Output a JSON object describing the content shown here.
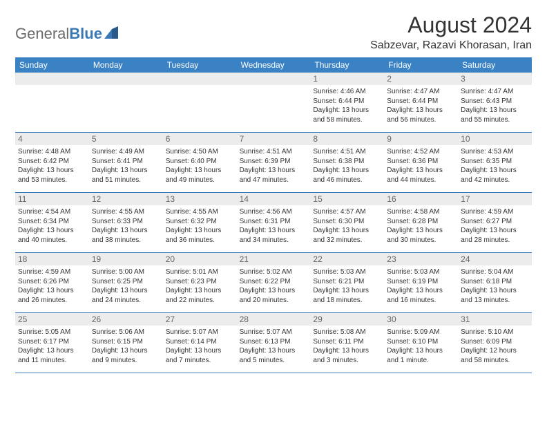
{
  "logo": {
    "part1": "General",
    "part2": "Blue"
  },
  "title": "August 2024",
  "location": "Sabzevar, Razavi Khorasan, Iran",
  "colors": {
    "header_bg": "#3a82c4",
    "header_text": "#ffffff",
    "daynum_bg": "#ececec",
    "daynum_text": "#666666",
    "body_text": "#333333",
    "border": "#3a78b5"
  },
  "weekdays": [
    "Sunday",
    "Monday",
    "Tuesday",
    "Wednesday",
    "Thursday",
    "Friday",
    "Saturday"
  ],
  "weeks": [
    [
      {
        "n": "",
        "sr": "",
        "ss": "",
        "dl": ""
      },
      {
        "n": "",
        "sr": "",
        "ss": "",
        "dl": ""
      },
      {
        "n": "",
        "sr": "",
        "ss": "",
        "dl": ""
      },
      {
        "n": "",
        "sr": "",
        "ss": "",
        "dl": ""
      },
      {
        "n": "1",
        "sr": "Sunrise: 4:46 AM",
        "ss": "Sunset: 6:44 PM",
        "dl": "Daylight: 13 hours and 58 minutes."
      },
      {
        "n": "2",
        "sr": "Sunrise: 4:47 AM",
        "ss": "Sunset: 6:44 PM",
        "dl": "Daylight: 13 hours and 56 minutes."
      },
      {
        "n": "3",
        "sr": "Sunrise: 4:47 AM",
        "ss": "Sunset: 6:43 PM",
        "dl": "Daylight: 13 hours and 55 minutes."
      }
    ],
    [
      {
        "n": "4",
        "sr": "Sunrise: 4:48 AM",
        "ss": "Sunset: 6:42 PM",
        "dl": "Daylight: 13 hours and 53 minutes."
      },
      {
        "n": "5",
        "sr": "Sunrise: 4:49 AM",
        "ss": "Sunset: 6:41 PM",
        "dl": "Daylight: 13 hours and 51 minutes."
      },
      {
        "n": "6",
        "sr": "Sunrise: 4:50 AM",
        "ss": "Sunset: 6:40 PM",
        "dl": "Daylight: 13 hours and 49 minutes."
      },
      {
        "n": "7",
        "sr": "Sunrise: 4:51 AM",
        "ss": "Sunset: 6:39 PM",
        "dl": "Daylight: 13 hours and 47 minutes."
      },
      {
        "n": "8",
        "sr": "Sunrise: 4:51 AM",
        "ss": "Sunset: 6:38 PM",
        "dl": "Daylight: 13 hours and 46 minutes."
      },
      {
        "n": "9",
        "sr": "Sunrise: 4:52 AM",
        "ss": "Sunset: 6:36 PM",
        "dl": "Daylight: 13 hours and 44 minutes."
      },
      {
        "n": "10",
        "sr": "Sunrise: 4:53 AM",
        "ss": "Sunset: 6:35 PM",
        "dl": "Daylight: 13 hours and 42 minutes."
      }
    ],
    [
      {
        "n": "11",
        "sr": "Sunrise: 4:54 AM",
        "ss": "Sunset: 6:34 PM",
        "dl": "Daylight: 13 hours and 40 minutes."
      },
      {
        "n": "12",
        "sr": "Sunrise: 4:55 AM",
        "ss": "Sunset: 6:33 PM",
        "dl": "Daylight: 13 hours and 38 minutes."
      },
      {
        "n": "13",
        "sr": "Sunrise: 4:55 AM",
        "ss": "Sunset: 6:32 PM",
        "dl": "Daylight: 13 hours and 36 minutes."
      },
      {
        "n": "14",
        "sr": "Sunrise: 4:56 AM",
        "ss": "Sunset: 6:31 PM",
        "dl": "Daylight: 13 hours and 34 minutes."
      },
      {
        "n": "15",
        "sr": "Sunrise: 4:57 AM",
        "ss": "Sunset: 6:30 PM",
        "dl": "Daylight: 13 hours and 32 minutes."
      },
      {
        "n": "16",
        "sr": "Sunrise: 4:58 AM",
        "ss": "Sunset: 6:28 PM",
        "dl": "Daylight: 13 hours and 30 minutes."
      },
      {
        "n": "17",
        "sr": "Sunrise: 4:59 AM",
        "ss": "Sunset: 6:27 PM",
        "dl": "Daylight: 13 hours and 28 minutes."
      }
    ],
    [
      {
        "n": "18",
        "sr": "Sunrise: 4:59 AM",
        "ss": "Sunset: 6:26 PM",
        "dl": "Daylight: 13 hours and 26 minutes."
      },
      {
        "n": "19",
        "sr": "Sunrise: 5:00 AM",
        "ss": "Sunset: 6:25 PM",
        "dl": "Daylight: 13 hours and 24 minutes."
      },
      {
        "n": "20",
        "sr": "Sunrise: 5:01 AM",
        "ss": "Sunset: 6:23 PM",
        "dl": "Daylight: 13 hours and 22 minutes."
      },
      {
        "n": "21",
        "sr": "Sunrise: 5:02 AM",
        "ss": "Sunset: 6:22 PM",
        "dl": "Daylight: 13 hours and 20 minutes."
      },
      {
        "n": "22",
        "sr": "Sunrise: 5:03 AM",
        "ss": "Sunset: 6:21 PM",
        "dl": "Daylight: 13 hours and 18 minutes."
      },
      {
        "n": "23",
        "sr": "Sunrise: 5:03 AM",
        "ss": "Sunset: 6:19 PM",
        "dl": "Daylight: 13 hours and 16 minutes."
      },
      {
        "n": "24",
        "sr": "Sunrise: 5:04 AM",
        "ss": "Sunset: 6:18 PM",
        "dl": "Daylight: 13 hours and 13 minutes."
      }
    ],
    [
      {
        "n": "25",
        "sr": "Sunrise: 5:05 AM",
        "ss": "Sunset: 6:17 PM",
        "dl": "Daylight: 13 hours and 11 minutes."
      },
      {
        "n": "26",
        "sr": "Sunrise: 5:06 AM",
        "ss": "Sunset: 6:15 PM",
        "dl": "Daylight: 13 hours and 9 minutes."
      },
      {
        "n": "27",
        "sr": "Sunrise: 5:07 AM",
        "ss": "Sunset: 6:14 PM",
        "dl": "Daylight: 13 hours and 7 minutes."
      },
      {
        "n": "28",
        "sr": "Sunrise: 5:07 AM",
        "ss": "Sunset: 6:13 PM",
        "dl": "Daylight: 13 hours and 5 minutes."
      },
      {
        "n": "29",
        "sr": "Sunrise: 5:08 AM",
        "ss": "Sunset: 6:11 PM",
        "dl": "Daylight: 13 hours and 3 minutes."
      },
      {
        "n": "30",
        "sr": "Sunrise: 5:09 AM",
        "ss": "Sunset: 6:10 PM",
        "dl": "Daylight: 13 hours and 1 minute."
      },
      {
        "n": "31",
        "sr": "Sunrise: 5:10 AM",
        "ss": "Sunset: 6:09 PM",
        "dl": "Daylight: 12 hours and 58 minutes."
      }
    ]
  ]
}
